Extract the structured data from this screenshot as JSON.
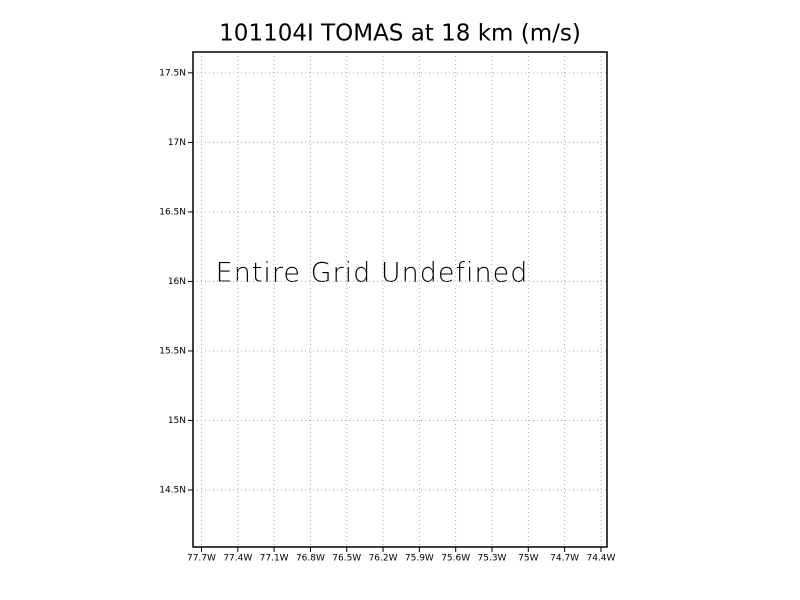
{
  "chart_data": {
    "type": "map",
    "title": "101104I TOMAS at 18 km (m/s)",
    "annotation": "Entire Grid Undefined",
    "xlim": [
      -77.77,
      -74.35
    ],
    "ylim": [
      14.09,
      17.65
    ],
    "xticks": [
      {
        "value": -77.7,
        "label": "77.7W"
      },
      {
        "value": -77.4,
        "label": "77.4W"
      },
      {
        "value": -77.1,
        "label": "77.1W"
      },
      {
        "value": -76.8,
        "label": "76.8W"
      },
      {
        "value": -76.5,
        "label": "76.5W"
      },
      {
        "value": -76.2,
        "label": "76.2W"
      },
      {
        "value": -75.9,
        "label": "75.9W"
      },
      {
        "value": -75.6,
        "label": "75.6W"
      },
      {
        "value": -75.3,
        "label": "75.3W"
      },
      {
        "value": -75.0,
        "label": "75W"
      },
      {
        "value": -74.7,
        "label": "74.7W"
      },
      {
        "value": -74.4,
        "label": "74.4W"
      }
    ],
    "yticks": [
      {
        "value": 14.5,
        "label": "14.5N"
      },
      {
        "value": 15.0,
        "label": "15N"
      },
      {
        "value": 15.5,
        "label": "15.5N"
      },
      {
        "value": 16.0,
        "label": "16N"
      },
      {
        "value": 16.5,
        "label": "16.5N"
      },
      {
        "value": 17.0,
        "label": "17N"
      },
      {
        "value": 17.5,
        "label": "17.5N"
      }
    ],
    "grid": true
  }
}
